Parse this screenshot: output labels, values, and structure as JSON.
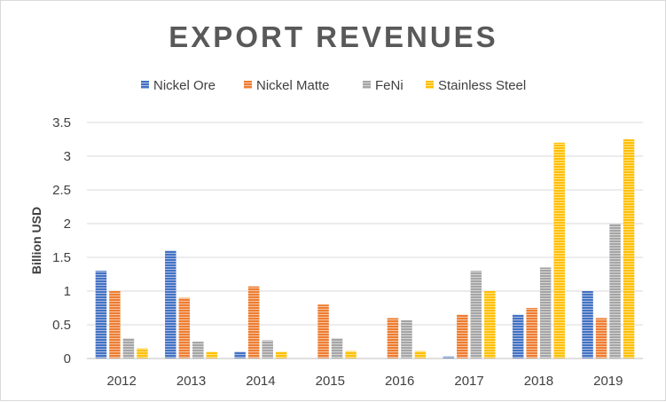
{
  "chart_data": {
    "type": "bar",
    "title": "EXPORT REVENUES",
    "ylabel": "Billion USD",
    "xlabel": "",
    "categories": [
      "2012",
      "2013",
      "2014",
      "2015",
      "2016",
      "2017",
      "2018",
      "2019"
    ],
    "ylim": [
      0,
      3.5
    ],
    "yticks": [
      "0",
      "0.5",
      "1",
      "1.5",
      "2",
      "2.5",
      "3",
      "3.5"
    ],
    "grid": true,
    "legend_position": "top",
    "series": [
      {
        "name": "Nickel Ore",
        "color": "#4472C4",
        "values": [
          1.3,
          1.6,
          0.1,
          0,
          0,
          0.03,
          0.65,
          1.0
        ]
      },
      {
        "name": "Nickel Matte",
        "color": "#ED7D31",
        "values": [
          1.0,
          0.9,
          1.07,
          0.8,
          0.6,
          0.65,
          0.75,
          0.6
        ]
      },
      {
        "name": "FeNi",
        "color": "#A5A5A5",
        "values": [
          0.3,
          0.25,
          0.27,
          0.3,
          0.57,
          1.3,
          1.35,
          2.0
        ]
      },
      {
        "name": "Stainless Steel",
        "color": "#FFC000",
        "values": [
          0.15,
          0.1,
          0.1,
          0.11,
          0.11,
          1.0,
          3.2,
          3.25
        ]
      }
    ]
  }
}
